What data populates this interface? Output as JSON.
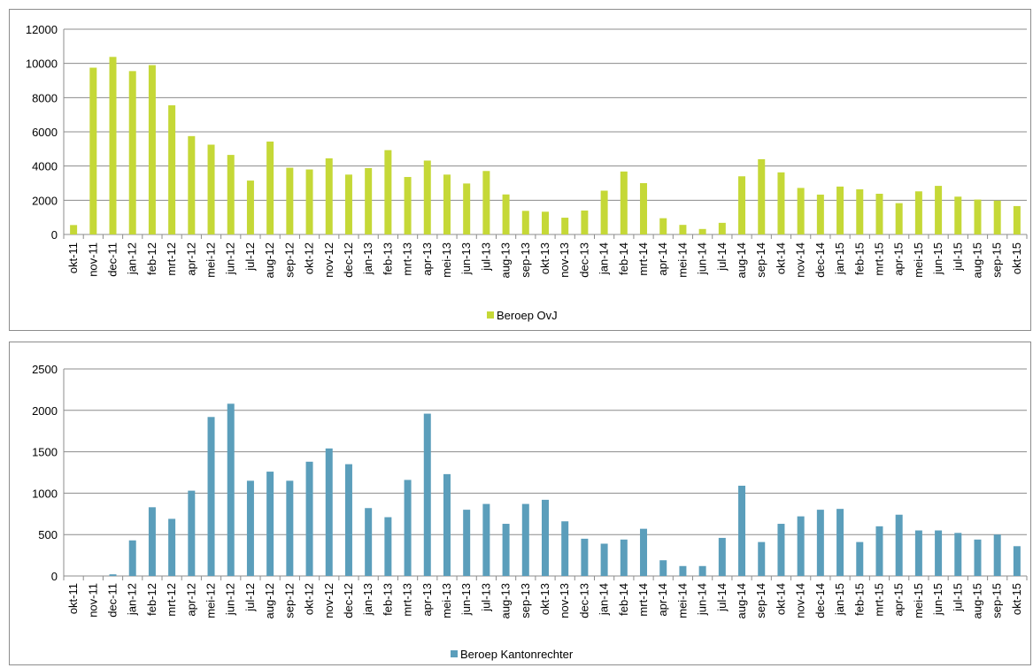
{
  "chart_data": [
    {
      "type": "bar",
      "title": "",
      "xlabel": "",
      "ylabel": "",
      "ylim": [
        0,
        12000
      ],
      "yticks": [
        0,
        2000,
        4000,
        6000,
        8000,
        10000,
        12000
      ],
      "grid": true,
      "legend_position": "bottom",
      "categories": [
        "okt-11",
        "nov-11",
        "dec-11",
        "jan-12",
        "feb-12",
        "mrt-12",
        "apr-12",
        "mei-12",
        "jun-12",
        "jul-12",
        "aug-12",
        "sep-12",
        "okt-12",
        "nov-12",
        "dec-12",
        "jan-13",
        "feb-13",
        "mrt-13",
        "apr-13",
        "mei-13",
        "jun-13",
        "jul-13",
        "aug-13",
        "sep-13",
        "okt-13",
        "nov-13",
        "dec-13",
        "jan-14",
        "feb-14",
        "mrt-14",
        "apr-14",
        "mei-14",
        "jun-14",
        "jul-14",
        "aug-14",
        "sep-14",
        "okt-14",
        "nov-14",
        "dec-14",
        "jan-15",
        "feb-15",
        "mrt-15",
        "apr-15",
        "mei-15",
        "jun-15",
        "jul-15",
        "aug-15",
        "sep-15",
        "okt-15"
      ],
      "series": [
        {
          "name": "Beroep OvJ",
          "color": "#c5d837",
          "values": [
            550,
            9750,
            10380,
            9550,
            9900,
            7550,
            5750,
            5250,
            4650,
            3150,
            5430,
            3900,
            3800,
            4450,
            3500,
            3880,
            4930,
            3360,
            4320,
            3500,
            2980,
            3710,
            2340,
            1380,
            1330,
            980,
            1400,
            2560,
            3680,
            3000,
            950,
            560,
            320,
            680,
            3400,
            4400,
            3630,
            2720,
            2330,
            2800,
            2640,
            2380,
            1830,
            2520,
            2840,
            2210,
            2040,
            1980,
            1660
          ]
        }
      ]
    },
    {
      "type": "bar",
      "title": "",
      "xlabel": "",
      "ylabel": "",
      "ylim": [
        0,
        2500
      ],
      "yticks": [
        0,
        500,
        1000,
        1500,
        2000,
        2500
      ],
      "grid": true,
      "legend_position": "bottom",
      "categories": [
        "okt-11",
        "nov-11",
        "dec-11",
        "jan-12",
        "feb-12",
        "mrt-12",
        "apr-12",
        "mei-12",
        "jun-12",
        "jul-12",
        "aug-12",
        "sep-12",
        "okt-12",
        "nov-12",
        "dec-12",
        "jan-13",
        "feb-13",
        "mrt-13",
        "apr-13",
        "mei-13",
        "jun-13",
        "jul-13",
        "aug-13",
        "sep-13",
        "okt-13",
        "nov-13",
        "dec-13",
        "jan-14",
        "feb-14",
        "mrt-14",
        "apr-14",
        "mei-14",
        "jun-14",
        "jul-14",
        "aug-14",
        "sep-14",
        "okt-14",
        "nov-14",
        "dec-14",
        "jan-15",
        "feb-15",
        "mrt-15",
        "apr-15",
        "mei-15",
        "jun-15",
        "jul-15",
        "aug-15",
        "sep-15",
        "okt-15"
      ],
      "series": [
        {
          "name": "Beroep Kantonrechter",
          "color": "#5b9ebb",
          "values": [
            0,
            0,
            20,
            430,
            830,
            690,
            1030,
            1920,
            2080,
            1150,
            1260,
            1150,
            1380,
            1540,
            1350,
            820,
            710,
            1160,
            1960,
            1230,
            800,
            870,
            630,
            870,
            920,
            660,
            450,
            390,
            440,
            570,
            190,
            120,
            120,
            460,
            1090,
            410,
            630,
            720,
            800,
            810,
            410,
            600,
            740,
            550,
            550,
            520,
            440,
            500,
            360
          ]
        }
      ]
    }
  ]
}
